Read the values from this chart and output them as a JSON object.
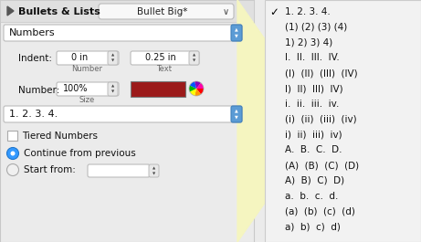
{
  "bg_color": "#ebebeb",
  "left_panel_bg": "#ececec",
  "title_bar_bg": "#e2e2e2",
  "dropdown_bg": "#ffffff",
  "stepper_bg": "#5b9bd5",
  "right_yellow_bg": "#f8f8d8",
  "right_panel_bg": "#f0f0f0",
  "right_panel_border": "#cccccc",
  "title_text": "Bullets & Lists",
  "dropdown_text": "Bullet Big*",
  "numbers_label": "Numbers",
  "indent_label": "Indent:",
  "number_label": "Number:",
  "indent_number_val": "0 in",
  "indent_text_val": "0.25 in",
  "number_size_val": "100%",
  "format_val": "1. 2. 3. 4.",
  "tiered_label": "Tiered Numbers",
  "continue_label": "Continue from previous",
  "start_label": "Start from:",
  "number_sub": "Number",
  "text_sub": "Text",
  "size_sub": "Size",
  "color_rect": "#9b1a1a",
  "list_items": [
    "1. 2. 3. 4.",
    "(1) (2) (3) (4)",
    "1) 2) 3) 4)",
    "I.  II.  III.  IV.",
    "(I)  (II)  (III)  (IV)",
    "I)  II)  III)  IV)",
    "i.  ii.  iii.  iv.",
    "(i)  (ii)  (iii)  (iv)",
    "i)  ii)  iii)  iv)",
    "A.  B.  C.  D.",
    "(A)  (B)  (C)  (D)",
    "A)  B)  C)  D)",
    "a.  b.  c.  d.",
    "(a)  (b)  (c)  (d)",
    "a)  b)  c)  d)"
  ],
  "checked_item": 0
}
